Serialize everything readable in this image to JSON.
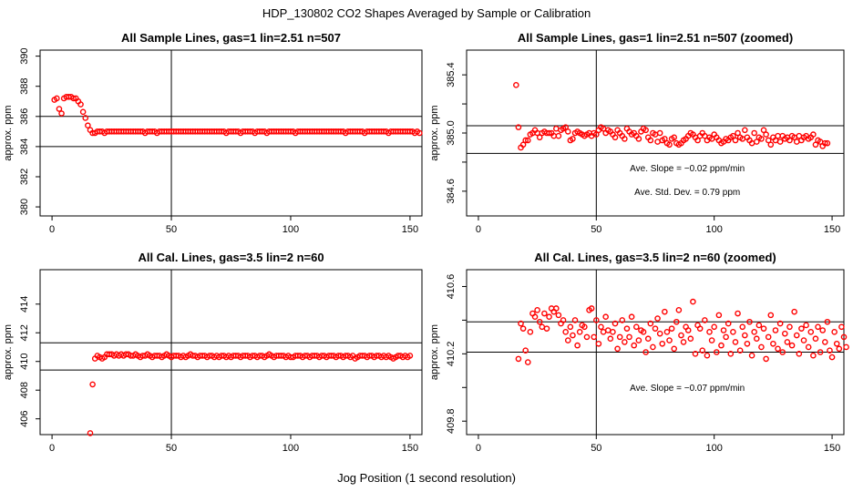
{
  "figure": {
    "title": "HDP_130802  CO2 Shapes Averaged by Sample or Calibration",
    "xlabel": "Jog Position (1 second resolution)"
  },
  "colors": {
    "points": "#ff0000",
    "lines": "#000000",
    "background": "#ffffff"
  },
  "chart_data": [
    {
      "type": "scatter",
      "title": "All Sample Lines, gas=1 lin=2.51 n=507",
      "ylabel": "approx. ppm",
      "xlim": [
        -5,
        155
      ],
      "ylim": [
        379.4,
        390.4
      ],
      "xticks": [
        0,
        50,
        100,
        150
      ],
      "yticks": [
        380,
        382,
        384,
        386,
        388,
        390
      ],
      "hlines": [
        386.0,
        384.0
      ],
      "vline": 50,
      "grid": false,
      "series": [
        {
          "x_start": 1,
          "values": [
            387.1,
            387.2,
            386.5,
            386.2,
            387.2,
            387.3,
            387.3,
            387.3,
            387.2,
            387.2,
            387.0,
            386.8,
            386.3,
            385.9,
            385.4,
            385.1,
            384.9,
            384.9,
            385.0,
            385.0,
            385.0,
            384.9,
            385.0,
            385.0,
            385.0,
            385.0,
            385.0,
            385.0,
            385.0,
            385.0,
            385.0,
            385.0,
            385.0,
            385.0,
            385.0,
            385.0,
            385.0,
            385.0,
            384.9,
            385.0,
            385.0,
            385.0,
            385.0,
            384.9,
            385.0,
            385.0,
            385.0,
            385.0,
            385.0,
            385.0,
            385.0,
            385.0,
            385.0,
            385.0,
            385.0,
            385.0,
            385.0,
            385.0,
            385.0,
            385.0,
            385.0,
            385.0,
            385.0,
            385.0,
            385.0,
            385.0,
            385.0,
            385.0,
            385.0,
            385.0,
            385.0,
            385.0,
            384.9,
            385.0,
            385.0,
            385.0,
            385.0,
            385.0,
            384.9,
            385.0,
            385.0,
            385.0,
            385.0,
            385.0,
            384.9,
            385.0,
            385.0,
            385.0,
            385.0,
            384.9,
            385.0,
            385.0,
            385.0,
            385.0,
            385.0,
            385.0,
            385.0,
            385.0,
            385.0,
            385.0,
            385.0,
            384.9,
            385.0,
            385.0,
            385.0,
            385.0,
            385.0,
            385.0,
            385.0,
            385.0,
            385.0,
            385.0,
            385.0,
            385.0,
            385.0,
            385.0,
            385.0,
            385.0,
            385.0,
            385.0,
            385.0,
            385.0,
            384.9,
            385.0,
            385.0,
            385.0,
            385.0,
            385.0,
            385.0,
            385.0,
            384.9,
            385.0,
            385.0,
            385.0,
            385.0,
            385.0,
            385.0,
            385.0,
            385.0,
            385.0,
            384.9,
            385.0,
            385.0,
            385.0,
            385.0,
            385.0,
            385.0,
            385.0,
            385.0,
            385.0,
            385.0,
            384.9,
            385.0,
            384.9
          ]
        }
      ],
      "annotations": []
    },
    {
      "type": "scatter",
      "title": "All Sample Lines, gas=1 lin=2.51 n=507 (zoomed)",
      "ylabel": "approx. ppm",
      "xlim": [
        -5,
        155
      ],
      "ylim": [
        384.43,
        385.57
      ],
      "xticks": [
        0,
        50,
        100,
        150
      ],
      "yticks": [
        384.6,
        384.8,
        385.0,
        385.2,
        385.4
      ],
      "ytick_labels_shown": [
        "384.6",
        "385.0",
        "385.4"
      ],
      "hlines": [
        385.05,
        384.86
      ],
      "vline": 50,
      "grid": false,
      "series": [
        {
          "x_start": 16,
          "values": [
            385.33,
            385.04,
            384.9,
            384.92,
            384.95,
            384.95,
            384.99,
            385.0,
            385.02,
            385.0,
            384.97,
            385.0,
            385.01,
            385.0,
            385.0,
            385.0,
            384.98,
            385.03,
            384.98,
            385.02,
            385.03,
            385.04,
            385.01,
            384.95,
            384.96,
            385.0,
            385.01,
            385.0,
            384.99,
            384.98,
            384.99,
            385.0,
            384.98,
            385.0,
            384.99,
            385.02,
            385.04,
            385.03,
            385.0,
            385.02,
            385.01,
            384.99,
            384.97,
            385.02,
            385.0,
            384.98,
            384.96,
            385.03,
            385.01,
            384.99,
            385.0,
            384.98,
            384.96,
            385.01,
            385.03,
            385.02,
            384.97,
            384.95,
            385.0,
            384.99,
            384.94,
            385.0,
            384.95,
            384.96,
            384.93,
            384.92,
            384.96,
            384.97,
            384.93,
            384.92,
            384.93,
            384.95,
            384.96,
            384.98,
            385.0,
            384.99,
            384.97,
            384.95,
            384.98,
            385.0,
            384.98,
            384.95,
            384.97,
            384.96,
            384.99,
            384.97,
            384.95,
            384.93,
            384.94,
            384.96,
            384.95,
            384.97,
            384.98,
            384.95,
            385.0,
            384.97,
            384.96,
            385.02,
            384.97,
            384.95,
            384.93,
            385.0,
            384.94,
            384.97,
            384.96,
            385.02,
            384.99,
            384.95,
            384.92,
            384.97,
            384.95,
            384.98,
            384.94,
            384.98,
            384.96,
            384.97,
            384.95,
            384.98,
            384.97,
            384.94,
            384.98,
            384.95,
            384.97,
            384.98,
            384.96,
            384.97,
            384.99,
            384.92,
            384.95,
            384.94,
            384.91,
            384.93,
            384.93
          ]
        }
      ],
      "annotations": [
        "Ave. Slope =  −0.02  ppm/min",
        "Ave. Std. Dev. =  0.79  ppm"
      ]
    },
    {
      "type": "scatter",
      "title": "All Cal. Lines, gas=3.5 lin=2 n=60",
      "ylabel": "approx. ppm",
      "xlim": [
        -5,
        155
      ],
      "ylim": [
        404.9,
        416.4
      ],
      "xticks": [
        0,
        50,
        100,
        150
      ],
      "yticks": [
        406,
        408,
        410,
        412,
        414
      ],
      "hlines": [
        411.3,
        409.4
      ],
      "vline": 50,
      "grid": false,
      "series": [
        {
          "x_start": 16,
          "values": [
            405.0,
            408.4,
            410.2,
            410.4,
            410.3,
            410.2,
            410.3,
            410.5,
            410.5,
            410.5,
            410.4,
            410.5,
            410.4,
            410.5,
            410.4,
            410.5,
            410.5,
            410.4,
            410.4,
            410.5,
            410.4,
            410.3,
            410.4,
            410.4,
            410.5,
            410.4,
            410.3,
            410.4,
            410.4,
            410.4,
            410.3,
            410.4,
            410.5,
            410.4,
            410.3,
            410.4,
            410.4,
            410.4,
            410.3,
            410.4,
            410.3,
            410.4,
            410.5,
            410.4,
            410.4,
            410.3,
            410.4,
            410.4,
            410.4,
            410.3,
            410.4,
            410.4,
            410.3,
            410.4,
            410.3,
            410.4,
            410.4,
            410.3,
            410.4,
            410.3,
            410.4,
            410.4,
            410.4,
            410.3,
            410.4,
            410.4,
            410.4,
            410.3,
            410.4,
            410.4,
            410.3,
            410.4,
            410.4,
            410.3,
            410.4,
            410.5,
            410.4,
            410.3,
            410.4,
            410.4,
            410.4,
            410.4,
            410.3,
            410.4,
            410.3,
            410.3,
            410.4,
            410.4,
            410.4,
            410.3,
            410.4,
            410.4,
            410.3,
            410.4,
            410.4,
            410.4,
            410.3,
            410.4,
            410.4,
            410.3,
            410.4,
            410.4,
            410.4,
            410.3,
            410.4,
            410.4,
            410.3,
            410.4,
            410.4,
            410.3,
            410.4,
            410.2,
            410.3,
            410.4,
            410.4,
            410.4,
            410.3,
            410.4,
            410.4,
            410.3,
            410.4,
            410.4,
            410.3,
            410.4,
            410.3,
            410.4,
            410.3,
            410.2,
            410.3,
            410.4,
            410.4,
            410.3,
            410.4,
            410.3,
            410.4
          ]
        }
      ],
      "annotations": []
    },
    {
      "type": "scatter",
      "title": "All Cal. Lines, gas=3.5 lin=2 n=60 (zoomed)",
      "ylabel": "approx. ppm",
      "xlim": [
        -5,
        155
      ],
      "ylim": [
        409.72,
        410.7
      ],
      "xticks": [
        0,
        50,
        100,
        150
      ],
      "yticks": [
        409.8,
        410.0,
        410.2,
        410.4,
        410.6
      ],
      "ytick_labels_shown": [
        "409.8",
        "410.2",
        "410.6"
      ],
      "hlines": [
        410.39,
        410.21
      ],
      "vline": 50,
      "grid": false,
      "series": [
        {
          "x_start": 17,
          "values": [
            410.17,
            410.38,
            410.35,
            410.22,
            410.15,
            410.33,
            410.44,
            410.42,
            410.46,
            410.39,
            410.36,
            410.44,
            410.35,
            410.42,
            410.47,
            410.45,
            410.47,
            410.43,
            410.38,
            410.4,
            410.33,
            410.28,
            410.36,
            410.31,
            410.4,
            410.25,
            410.33,
            410.37,
            410.36,
            410.3,
            410.46,
            410.47,
            410.3,
            410.4,
            410.26,
            410.36,
            410.33,
            410.42,
            410.34,
            410.29,
            410.33,
            410.38,
            410.23,
            410.3,
            410.4,
            410.27,
            410.35,
            410.3,
            410.42,
            410.25,
            410.36,
            410.28,
            410.34,
            410.33,
            410.21,
            410.29,
            410.38,
            410.24,
            410.35,
            410.41,
            410.32,
            410.26,
            410.45,
            410.33,
            410.28,
            410.35,
            410.23,
            410.39,
            410.46,
            410.31,
            410.27,
            410.36,
            410.34,
            410.29,
            410.51,
            410.2,
            410.37,
            410.35,
            410.22,
            410.4,
            410.19,
            410.33,
            410.28,
            410.36,
            410.21,
            410.43,
            410.25,
            410.34,
            410.3,
            410.38,
            410.2,
            410.33,
            410.27,
            410.44,
            410.22,
            410.36,
            410.31,
            410.26,
            410.39,
            410.19,
            410.33,
            410.29,
            410.37,
            410.24,
            410.35,
            410.17,
            410.3,
            410.43,
            410.26,
            410.34,
            410.23,
            410.38,
            410.21,
            410.32,
            410.27,
            410.36,
            410.25,
            410.45,
            410.31,
            410.2,
            410.35,
            410.28,
            410.37,
            410.24,
            410.33,
            410.19,
            410.29,
            410.36,
            410.21,
            410.34,
            410.27,
            410.39,
            410.22,
            410.18,
            410.33,
            410.26,
            410.23,
            410.36,
            410.3,
            410.24
          ]
        }
      ],
      "annotations": [
        "Ave. Slope =  −0.07  ppm/min"
      ]
    }
  ]
}
